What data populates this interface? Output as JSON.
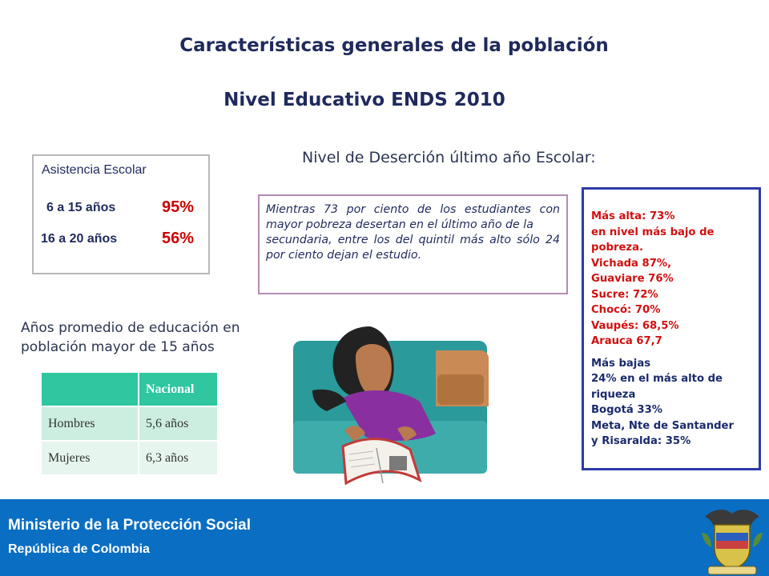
{
  "title": "Características generales de la población",
  "subtitle": "Nivel Educativo ENDS 2010",
  "asistencia": {
    "heading": "Asistencia Escolar",
    "rows": [
      {
        "label": "6 a 15 años",
        "value": "95%"
      },
      {
        "label": "16 a 20 años",
        "value": "56%"
      }
    ]
  },
  "desercion": {
    "heading": "Nivel de Deserción último año Escolar:",
    "quote_lines": [
      "Mientras 73 por ciento de los estudiantes con mayor pobreza desertan en el último año de la",
      "secundaria, entre los del quintil más alto sólo 24 por ciento dejan el estudio."
    ]
  },
  "regions": {
    "high_lines": [
      "Más alta: 73%",
      "en nivel más bajo de",
      "pobreza.",
      "Vichada 87%,",
      "Guaviare 76%",
      "Sucre: 72%",
      "Chocó: 70%",
      "Vaupés: 68,5%",
      "Arauca 67,7"
    ],
    "low_lines": [
      "Más bajas",
      "24% en el más alto de",
      "riqueza",
      "Bogotá 33%",
      "Meta, Nte de Santander",
      "y Risaralda: 35%"
    ],
    "colors": {
      "high": "#d01010",
      "low": "#1a2b6b",
      "border": "#2e3aa8"
    }
  },
  "anos": {
    "heading_lines": [
      "Años promedio de educación en",
      "población mayor de 15 años"
    ],
    "table": {
      "header": [
        "",
        "Nacional"
      ],
      "rows": [
        [
          "Hombres",
          "5,6 años"
        ],
        [
          "Mujeres",
          "6,3 años"
        ]
      ]
    }
  },
  "footer": {
    "ministerio": "Ministerio de la Protección Social",
    "republica": "República de Colombia",
    "background": "#0a6ec2"
  },
  "images": {
    "illustration": "girl-reading-book-illustration",
    "emblem": "colombia-coat-of-arms-icon"
  }
}
